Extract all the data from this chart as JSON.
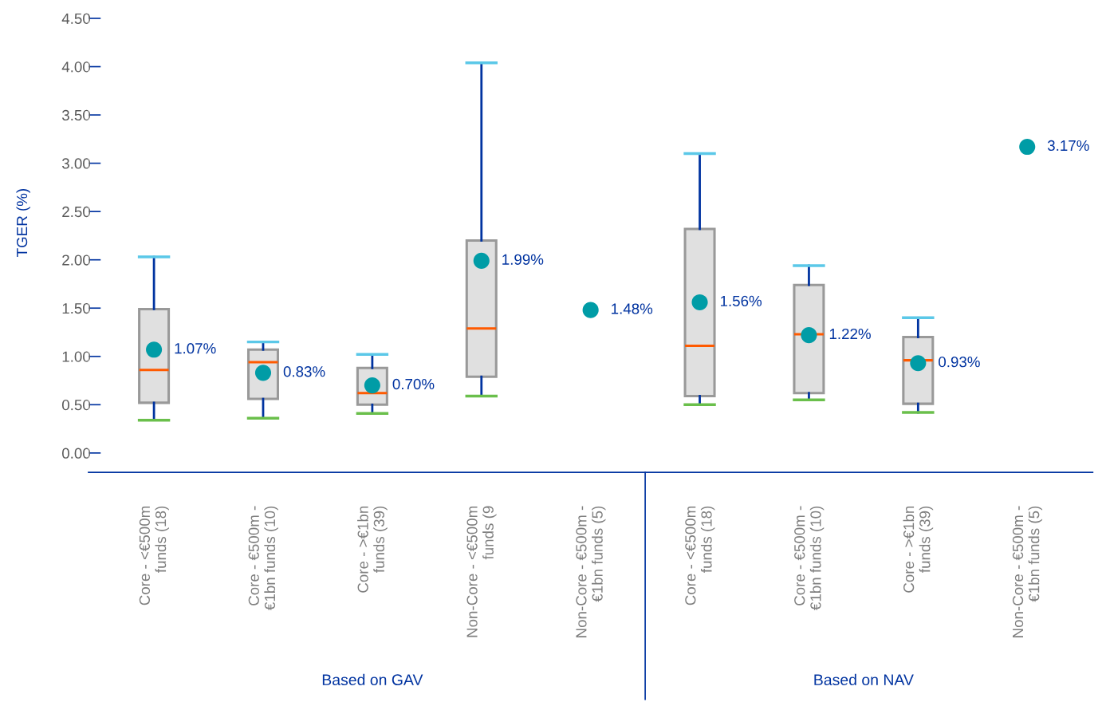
{
  "chart_data": {
    "type": "box",
    "ylabel": "TGER (%)",
    "categories": [
      "Core - <€500m\nfunds (18)",
      "Core - €500m -\n€1bn funds (10)",
      "Core - >€1bn\nfunds (39)",
      "Non-Core - <€500m\nfunds (9",
      "Non-Core - €500m -\n€1bn funds (5)",
      "Core - <€500m\nfunds (18)",
      "Core - €500m -\n€1bn funds (10)",
      "Core - >€1bn\nfunds (39)",
      "Non-Core - €500m -\n€1bn funds (5)"
    ],
    "boxes": [
      {
        "low": 0.34,
        "q1": 0.52,
        "median": 0.86,
        "q3": 1.49,
        "high": 2.03
      },
      {
        "low": 0.36,
        "q1": 0.56,
        "median": 0.94,
        "q3": 1.07,
        "high": 1.15
      },
      {
        "low": 0.41,
        "q1": 0.5,
        "median": 0.62,
        "q3": 0.88,
        "high": 1.02
      },
      {
        "low": 0.59,
        "q1": 0.79,
        "median": 1.29,
        "q3": 2.2,
        "high": 4.04
      },
      null,
      {
        "low": 0.5,
        "q1": 0.59,
        "median": 1.11,
        "q3": 2.32,
        "high": 3.1
      },
      {
        "low": 0.55,
        "q1": 0.62,
        "median": 1.23,
        "q3": 1.74,
        "high": 1.94
      },
      {
        "low": 0.42,
        "q1": 0.51,
        "median": 0.96,
        "q3": 1.2,
        "high": 1.4
      },
      null
    ],
    "series": [
      {
        "type": "scatter",
        "color": "#009ca6",
        "values": [
          1.07,
          0.83,
          0.7,
          1.99,
          1.48,
          1.56,
          1.22,
          0.93,
          3.17
        ],
        "value_labels": [
          "1.07%",
          "0.83%",
          "0.70%",
          "1.99%",
          "1.48%",
          "1.56%",
          "1.22%",
          "0.93%",
          "3.17%"
        ]
      }
    ],
    "ylim": [
      -0.2,
      4.5
    ],
    "yticks": [
      {
        "value": 0,
        "label": "0.00"
      },
      {
        "value": 0.5,
        "label": "0.50"
      },
      {
        "value": 1,
        "label": "1.00"
      },
      {
        "value": 1.5,
        "label": "1.50"
      },
      {
        "value": 2,
        "label": "2.00"
      },
      {
        "value": 2.5,
        "label": "2.50"
      },
      {
        "value": 3,
        "label": "3.00"
      },
      {
        "value": 3.5,
        "label": "3.50"
      },
      {
        "value": 4,
        "label": "4.00"
      },
      {
        "value": 4.5,
        "label": "4.50"
      }
    ],
    "annotations": [
      "Based on GAV",
      "Based on NAV"
    ],
    "grid": false
  }
}
